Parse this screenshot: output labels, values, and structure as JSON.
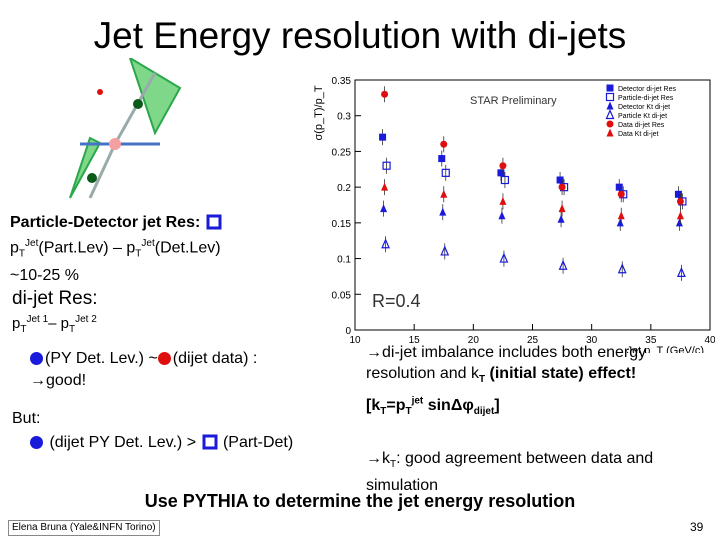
{
  "title": "Jet Energy resolution with di-jets",
  "particle_detector": {
    "heading": "Particle-Detector jet Res:",
    "expr_p1": "p",
    "expr_sub1": "T",
    "expr_sup1": "Jet",
    "expr_mid": "(Part.Lev) – p",
    "expr_sub2": "T",
    "expr_sup2": "Jet",
    "expr_end": "(Det.Lev)",
    "range": "~10-25 %"
  },
  "dijet": {
    "heading": "di-jet Res:",
    "expr_p1": "p",
    "expr_sub1": "T",
    "expr_sup1": "Jet 1",
    "expr_mid": "– p",
    "expr_sub2": "T",
    "expr_sup2": "Jet 2"
  },
  "comparison": {
    "line1_a": "(PY Det. Lev.) ~",
    "line1_b": "(dijet data) :",
    "line1_c": "→good!",
    "but": "But:",
    "line2_a": "(dijet PY Det. Lev.) >",
    "line2_b": "(Part-Det)"
  },
  "right_text": {
    "imb_1": "→di-jet imbalance includes both energy resolution and k",
    "imb_1_sub": "T",
    "imb_2": " (initial state) effect!",
    "imb_3": "[k",
    "imb_3_sub": "T",
    "imb_4": "=p",
    "imb_4_sub": "T",
    "imb_4_sup": "jet",
    "imb_5": " sinΔφ",
    "imb_5_sub": "dijet",
    "imb_6": "]",
    "kt_1": "→k",
    "kt_1_sub": "T",
    "kt_2": ": good agreement between data and simulation"
  },
  "pythia_line": "Use PYTHIA to determine the jet energy resolution",
  "footer": {
    "author": "Elena Bruna (Yale&INFN Torino)",
    "page": "39"
  },
  "colors": {
    "blue": "#1a1adb",
    "red": "#e00f0f",
    "green": "#2aa84a",
    "dark_green": "#0a5a1a"
  },
  "chart_data": {
    "type": "scatter",
    "title": "STAR Preliminary",
    "annotation": "R=0.4",
    "ylabel": "σ(p_T)/p_T",
    "xlabel": "Jet p_T (GeV/c)",
    "xlim": [
      10,
      40
    ],
    "ylim": [
      0,
      0.35
    ],
    "xticks": [
      "10",
      "15",
      "20",
      "25",
      "30",
      "35",
      "40"
    ],
    "yticks": [
      "0",
      "0.05",
      "0.1",
      "0.15",
      "0.2",
      "0.25",
      "0.3",
      "0.35"
    ],
    "legend": [
      {
        "label": "Detector di-jet Res",
        "marker": "filled-square",
        "color": "#1a1adb"
      },
      {
        "label": "Particle-di-jet Res",
        "marker": "open-square",
        "color": "#1a1adb"
      },
      {
        "label": "Detector Kt di-jet",
        "marker": "filled-triangle",
        "color": "#1a1adb"
      },
      {
        "label": "Particle Kt di-jet",
        "marker": "open-triangle",
        "color": "#1a1adb"
      },
      {
        "label": "Data di-jet Res",
        "marker": "filled-circle",
        "color": "#e00f0f"
      },
      {
        "label": "Data Kt di-jet",
        "marker": "filled-triangle",
        "color": "#e00f0f"
      }
    ],
    "series": [
      {
        "name": "Detector di-jet Res",
        "x": [
          12.5,
          17.5,
          22.5,
          27.5,
          32.5,
          37.5
        ],
        "y": [
          0.27,
          0.24,
          0.22,
          0.21,
          0.2,
          0.19
        ]
      },
      {
        "name": "Particle-di-jet Res",
        "x": [
          12.5,
          17.5,
          22.5,
          27.5,
          32.5,
          37.5
        ],
        "y": [
          0.23,
          0.22,
          0.21,
          0.2,
          0.19,
          0.18
        ]
      },
      {
        "name": "Detector Kt di-jet",
        "x": [
          12.5,
          17.5,
          22.5,
          27.5,
          32.5,
          37.5
        ],
        "y": [
          0.17,
          0.165,
          0.16,
          0.155,
          0.15,
          0.15
        ]
      },
      {
        "name": "Particle Kt di-jet",
        "x": [
          12.5,
          17.5,
          22.5,
          27.5,
          32.5,
          37.5
        ],
        "y": [
          0.12,
          0.11,
          0.1,
          0.09,
          0.085,
          0.08
        ]
      },
      {
        "name": "Data di-jet Res",
        "x": [
          12.5,
          17.5,
          22.5,
          27.5,
          32.5,
          37.5
        ],
        "y": [
          0.33,
          0.26,
          0.23,
          0.2,
          0.19,
          0.18
        ]
      },
      {
        "name": "Data Kt di-jet",
        "x": [
          12.5,
          17.5,
          22.5,
          27.5,
          32.5,
          37.5
        ],
        "y": [
          0.2,
          0.19,
          0.18,
          0.17,
          0.16,
          0.16
        ]
      }
    ]
  }
}
